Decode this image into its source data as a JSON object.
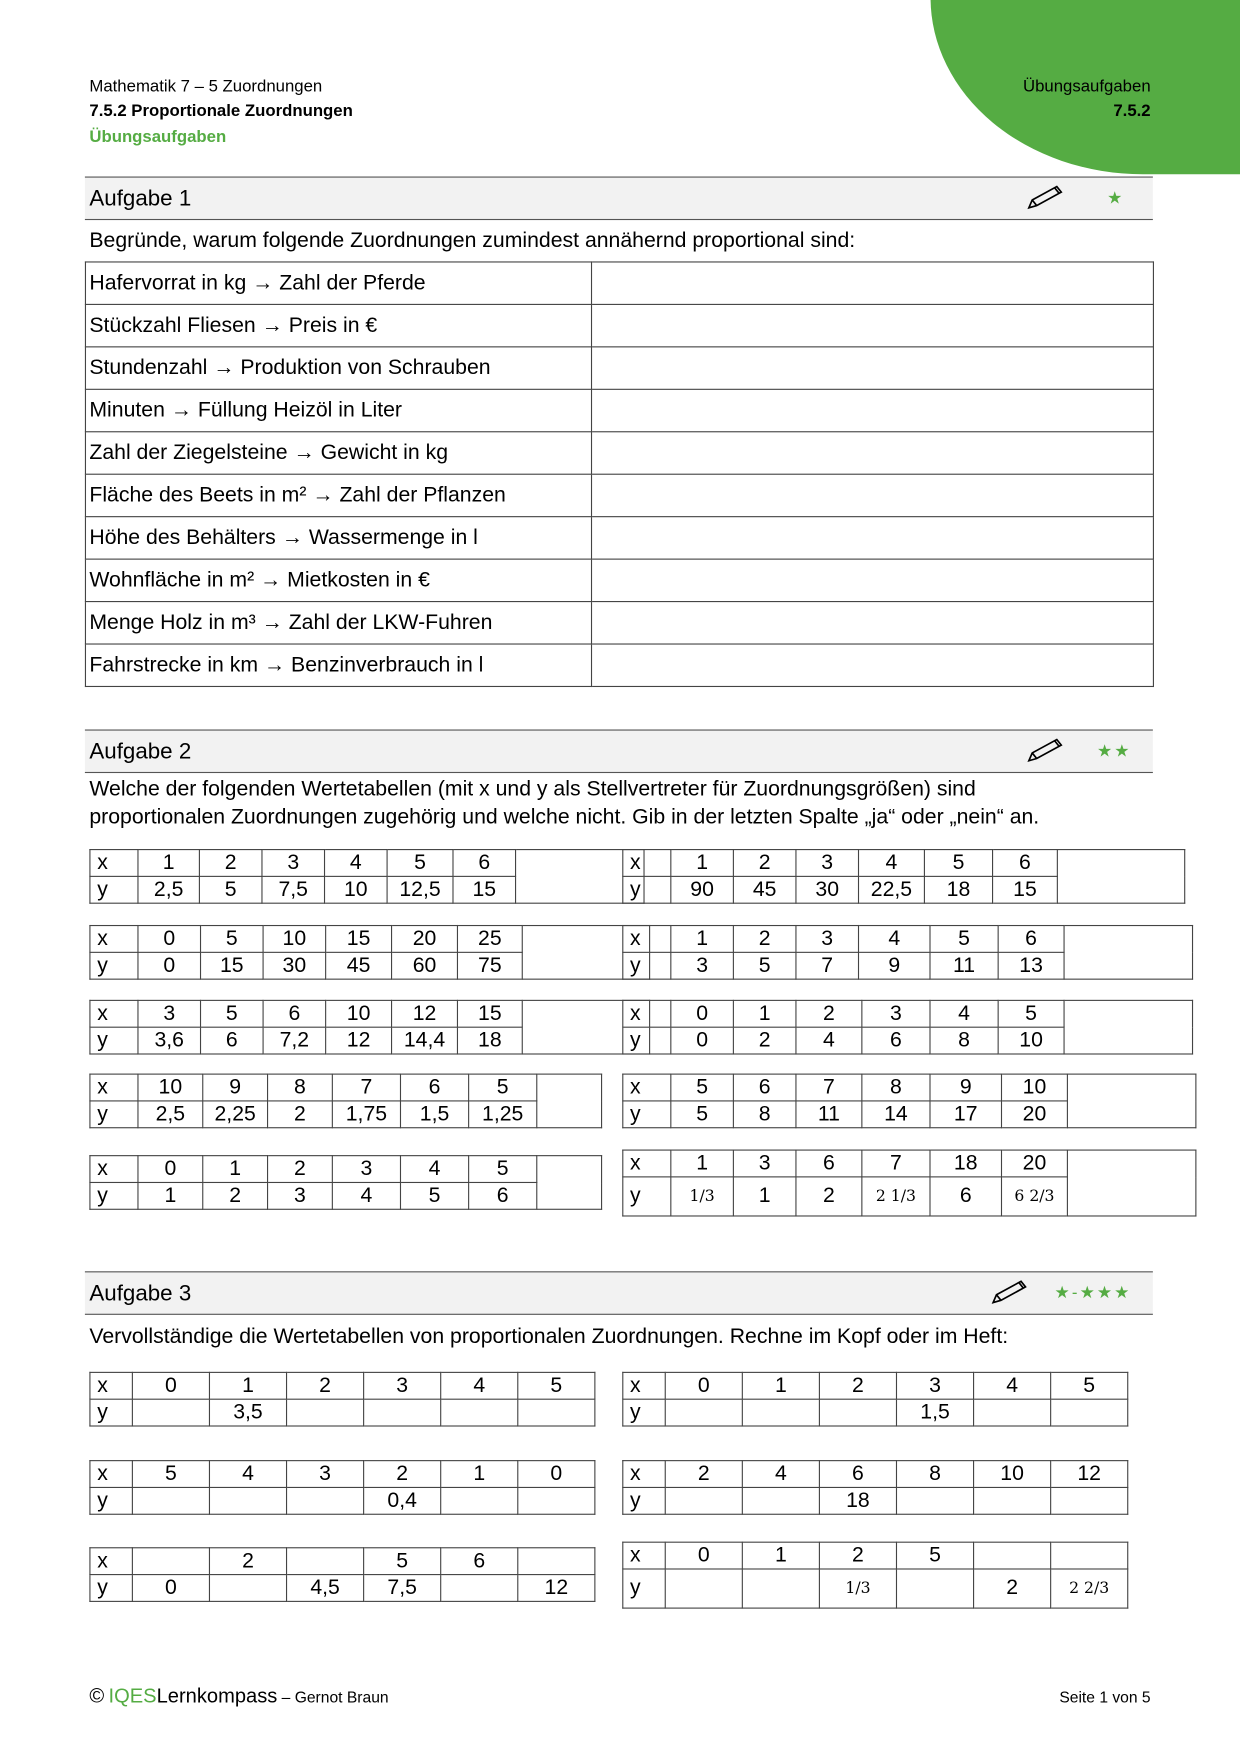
{
  "header": {
    "subject": "Mathematik 7 – 5 Zuordnungen",
    "topic": "7.5.2 Proportionale Zuordnungen",
    "kind": "Übungsaufgaben",
    "right_kind": "Übungsaufgaben",
    "right_code": "7.5.2",
    "accent": "#55ac43"
  },
  "aufgabe1": {
    "title": "Aufgabe 1",
    "stars": "★",
    "icon": "pencil-icon",
    "text": "Begründe, warum folgende  Zuordnungen zumindest annähernd proportional sind:",
    "rows": [
      "Hafervorrat in kg → Zahl der Pferde",
      "Stückzahl Fliesen → Preis in €",
      "Stundenzahl  → Produktion von Schrauben",
      "Minuten → Füllung Heizöl in Liter",
      "Zahl der Ziegelsteine → Gewicht in kg",
      "Fläche des Beets in m² → Zahl der Pflanzen",
      "Höhe des Behälters → Wassermenge in l",
      "Wohnfläche in m² → Mietkosten in €",
      "Menge Holz in m³ → Zahl der LKW-Fuhren",
      "Fahrstrecke in km → Benzinverbrauch in l"
    ]
  },
  "aufgabe2": {
    "title": "Aufgabe 2",
    "stars": "★★",
    "icon": "pencil-icon",
    "text1": "Welche der folgenden Wertetabellen (mit x und y als Stellvertreter für Zuordnungsgrößen) sind",
    "text2": "proportionalen Zuordnungen zugehörig und welche nicht. Gib in der letzten Spalte „ja“ oder „nein“ an.",
    "tables": [
      {
        "x": [
          "1",
          "2",
          "3",
          "4",
          "5",
          "6"
        ],
        "y": [
          "2,5",
          "5",
          "7,5",
          "10",
          "12,5",
          "15"
        ]
      },
      {
        "x": [
          "1",
          "2",
          "3",
          "4",
          "5",
          "6"
        ],
        "y": [
          "90",
          "45",
          "30",
          "22,5",
          "18",
          "15"
        ]
      },
      {
        "x": [
          "0",
          "5",
          "10",
          "15",
          "20",
          "25"
        ],
        "y": [
          "0",
          "15",
          "30",
          "45",
          "60",
          "75"
        ]
      },
      {
        "x": [
          "1",
          "2",
          "3",
          "4",
          "5",
          "6"
        ],
        "y": [
          "3",
          "5",
          "7",
          "9",
          "11",
          "13"
        ]
      },
      {
        "x": [
          "3",
          "5",
          "6",
          "10",
          "12",
          "15"
        ],
        "y": [
          "3,6",
          "6",
          "7,2",
          "12",
          "14,4",
          "18"
        ]
      },
      {
        "x": [
          "0",
          "1",
          "2",
          "3",
          "4",
          "5"
        ],
        "y": [
          "0",
          "2",
          "4",
          "6",
          "8",
          "10"
        ]
      },
      {
        "x": [
          "10",
          "9",
          "8",
          "7",
          "6",
          "5"
        ],
        "y": [
          "2,5",
          "2,25",
          "2",
          "1,75",
          "1,5",
          "1,25"
        ]
      },
      {
        "x": [
          "5",
          "6",
          "7",
          "8",
          "9",
          "10"
        ],
        "y": [
          "5",
          "8",
          "11",
          "14",
          "17",
          "20"
        ]
      },
      {
        "x": [
          "0",
          "1",
          "2",
          "3",
          "4",
          "5"
        ],
        "y": [
          "1",
          "2",
          "3",
          "4",
          "5",
          "6"
        ]
      },
      {
        "x": [
          "1",
          "3",
          "6",
          "7",
          "18",
          "20"
        ],
        "y": [
          "1/3",
          "1",
          "2",
          "2 1/3",
          "6",
          "6 2/3"
        ]
      }
    ]
  },
  "aufgabe3": {
    "title": "Aufgabe 3",
    "stars": "★-★★★",
    "icon": "pencil-icon",
    "text": "Vervollständige die Wertetabellen von proportionalen Zuordnungen. Rechne im Kopf oder im Heft:",
    "tables": [
      {
        "x": [
          "0",
          "1",
          "2",
          "3",
          "4",
          "5"
        ],
        "y": [
          "",
          "3,5",
          "",
          "",
          "",
          ""
        ]
      },
      {
        "x": [
          "0",
          "1",
          "2",
          "3",
          "4",
          "5"
        ],
        "y": [
          "",
          "",
          "",
          "1,5",
          "",
          ""
        ]
      },
      {
        "x": [
          "5",
          "4",
          "3",
          "2",
          "1",
          "0"
        ],
        "y": [
          "",
          "",
          "",
          "0,4",
          "",
          ""
        ]
      },
      {
        "x": [
          "2",
          "4",
          "6",
          "8",
          "10",
          "12"
        ],
        "y": [
          "",
          "",
          "18",
          "",
          "",
          ""
        ]
      },
      {
        "x": [
          "",
          "2",
          "",
          "5",
          "6",
          ""
        ],
        "y": [
          "0",
          "",
          "4,5",
          "7,5",
          "",
          "12"
        ]
      },
      {
        "x": [
          "0",
          "1",
          "2",
          "5",
          "",
          ""
        ],
        "y": [
          "",
          "",
          "1/3",
          "",
          "2",
          "2 2/3"
        ]
      }
    ]
  },
  "labels": {
    "x": "x",
    "y": "y"
  },
  "footer": {
    "copyright": "©",
    "brand1": "IQES",
    "brand2": "Lernkompass",
    "author": "– Gernot Braun",
    "page": "Seite 1 von 5"
  }
}
